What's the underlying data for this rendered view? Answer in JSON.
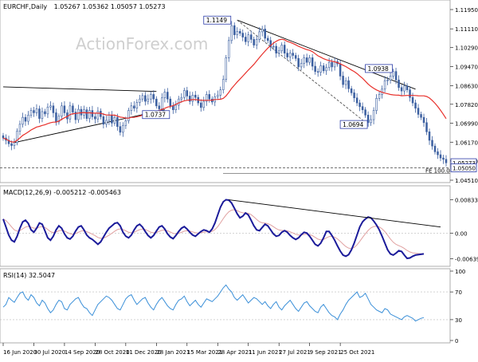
{
  "header": {
    "symbol": "EURCHF,Daily",
    "ohlc": "1.05267 1.05362 1.05057 1.05273"
  },
  "watermark": "ActionForex.com",
  "chart_data": [
    {
      "type": "candlestick",
      "panel": "price",
      "y_ticks": [
        "1.11950",
        "1.11110",
        "1.10290",
        "1.09470",
        "1.08630",
        "1.07820",
        "1.06990",
        "1.06170",
        "1.05350",
        "1.04510"
      ],
      "ylim": [
        1.0451,
        1.1195
      ],
      "price_labels": [
        {
          "label": "1.05273",
          "price": 1.05273,
          "color": "#2b3ba8"
        },
        {
          "label": "1.05050",
          "price": 1.0505,
          "color": "#2b3ba8"
        }
      ],
      "fe_label": "FE 100.0",
      "annotations": [
        {
          "label": "1.1149",
          "i": 82,
          "price": 1.1149,
          "pos": "left"
        },
        {
          "label": "1.0737",
          "i": 60,
          "price": 1.0737,
          "pos": "left"
        },
        {
          "label": "1.0938",
          "i": 140,
          "price": 1.0938,
          "pos": "left"
        },
        {
          "label": "1.0694",
          "i": 131,
          "price": 1.0694,
          "pos": "left"
        }
      ],
      "ma_color": "#e8302b",
      "candle_color": "#3b5fa0",
      "close_series": [
        1.0635,
        1.0625,
        1.061,
        1.0602,
        1.0615,
        1.0665,
        1.0695,
        1.0725,
        1.0708,
        1.0735,
        1.0755,
        1.0745,
        1.0762,
        1.072,
        1.075,
        1.074,
        1.077,
        1.0775,
        1.0745,
        1.0705,
        1.073,
        1.0775,
        1.0745,
        1.0718,
        1.0775,
        1.0748,
        1.0715,
        1.076,
        1.0735,
        1.0758,
        1.072,
        1.0755,
        1.0728,
        1.0718,
        1.0752,
        1.0728,
        1.0695,
        1.0712,
        1.0735,
        1.07,
        1.0725,
        1.0685,
        1.066,
        1.069,
        1.071,
        1.0755,
        1.0775,
        1.0765,
        1.079,
        1.0805,
        1.082,
        1.0795,
        1.0805,
        1.0825,
        1.0805,
        1.0775,
        1.0762,
        1.081,
        1.0835,
        1.0805,
        1.0775,
        1.0758,
        1.0778,
        1.0805,
        1.0812,
        1.0842,
        1.0818,
        1.0795,
        1.0822,
        1.0812,
        1.0788,
        1.0768,
        1.0795,
        1.0825,
        1.0805,
        1.0792,
        1.0815,
        1.0822,
        1.0845,
        1.089,
        1.0985,
        1.106,
        1.1125,
        1.1085,
        1.11,
        1.1092,
        1.1075,
        1.1055,
        1.1085,
        1.1065,
        1.104,
        1.1065,
        1.1098,
        1.111,
        1.107,
        1.106,
        1.1032,
        1.1035,
        1.1005,
        1.1015,
        1.104,
        1.1005,
        1.0988,
        1.1005,
        1.0995,
        1.0982,
        1.0945,
        1.096,
        1.0985,
        1.0965,
        1.0985,
        1.0948,
        1.0925,
        1.0922,
        1.095,
        1.0928,
        1.0942,
        1.0965,
        1.0945,
        1.0968,
        1.0958,
        1.0905,
        1.0868,
        1.0885,
        1.085,
        1.0832,
        1.081,
        1.0788,
        1.0772,
        1.0758,
        1.0735,
        1.0702,
        1.0715,
        1.0755,
        1.0808,
        1.0825,
        1.0848,
        1.0885,
        1.0888,
        1.0905,
        1.0925,
        1.0888,
        1.0855,
        1.084,
        1.0862,
        1.0845,
        1.0812,
        1.0788,
        1.0765,
        1.0738,
        1.0725,
        1.0702,
        1.0662,
        1.0625,
        1.06,
        1.0575,
        1.0562,
        1.0548,
        1.0542,
        1.0527
      ],
      "trendlines": [
        {
          "from": [
            0,
            1.0858
          ],
          "to": [
            55,
            1.0838
          ],
          "color": "#000"
        },
        {
          "from": [
            4,
            1.0615
          ],
          "to": [
            58,
            1.0758
          ],
          "color": "#000"
        },
        {
          "from": [
            84,
            1.1149
          ],
          "to": [
            148,
            1.0848
          ],
          "color": "#000"
        },
        {
          "from": [
            84,
            1.1149
          ],
          "to": [
            131,
            1.0694
          ],
          "color": "#555",
          "dashed": true
        }
      ],
      "hline": {
        "price": 1.0505,
        "color": "#444"
      }
    },
    {
      "type": "line",
      "panel": "macd",
      "title": "MACD(12,26,9) -0.005212 -0.005463",
      "y_ticks": [
        "0.008334",
        "0.00",
        "-0.006393"
      ],
      "ylim": [
        -0.0075,
        0.0092
      ],
      "zero": 0,
      "series_colors": {
        "macd": "#1b1b9a",
        "signal": "#e0a0a0"
      },
      "macd": [
        0.0035,
        0.0015,
        -0.0005,
        -0.0018,
        -0.0022,
        -0.0008,
        0.0012,
        0.0028,
        0.0032,
        0.0024,
        0.0008,
        0.0002,
        0.0012,
        0.0025,
        0.0022,
        0.0005,
        -0.0012,
        -0.0018,
        -0.0008,
        0.0008,
        0.0018,
        0.0012,
        -0.0002,
        -0.0012,
        -0.0015,
        -0.0008,
        0.0005,
        0.0015,
        0.0018,
        0.0008,
        -0.0005,
        -0.0012,
        -0.0016,
        -0.0022,
        -0.0028,
        -0.0022,
        -0.001,
        0.0002,
        0.0012,
        0.0018,
        0.0024,
        0.0026,
        0.0018,
        0.0002,
        -0.0008,
        -0.0012,
        -0.0005,
        0.0008,
        0.0018,
        0.0022,
        0.0015,
        0.0004,
        -0.0006,
        -0.0012,
        -0.0006,
        0.0005,
        0.0015,
        0.0018,
        0.001,
        -0.0002,
        -0.001,
        -0.0014,
        -0.0006,
        0.0004,
        0.0012,
        0.0016,
        0.001,
        0.0002,
        -0.0005,
        -0.0008,
        -0.0002,
        0.0004,
        0.0008,
        0.0006,
        0.0002,
        0.001,
        0.0025,
        0.0045,
        0.0065,
        0.0078,
        0.0083,
        0.0082,
        0.0075,
        0.0062,
        0.0048,
        0.0038,
        0.0042,
        0.005,
        0.0045,
        0.0032,
        0.0018,
        0.0008,
        0.0006,
        0.0014,
        0.0022,
        0.0018,
        0.0008,
        -0.0002,
        -0.0008,
        -0.0006,
        0.0002,
        0.0006,
        0.0002,
        -0.0006,
        -0.0012,
        -0.0016,
        -0.0012,
        -0.0004,
        0.0002,
        0.0,
        -0.0008,
        -0.0018,
        -0.0028,
        -0.0032,
        -0.0025,
        -0.0012,
        0.0004,
        0.0004,
        -0.0006,
        -0.0018,
        -0.0032,
        -0.0045,
        -0.0055,
        -0.0058,
        -0.0054,
        -0.0042,
        -0.0025,
        -0.0005,
        0.0015,
        0.0028,
        0.0035,
        0.004,
        0.0038,
        0.003,
        0.002,
        0.0008,
        -0.0008,
        -0.0025,
        -0.0042,
        -0.0052,
        -0.0055,
        -0.005,
        -0.0044,
        -0.0046,
        -0.0055,
        -0.0063,
        -0.0062,
        -0.0058,
        -0.0055,
        -0.0054,
        -0.0053,
        -0.0052
      ],
      "trendline": {
        "from": [
          81,
          0.0083
        ],
        "to": [
          157,
          0.0015
        ],
        "color": "#000"
      }
    },
    {
      "type": "line",
      "panel": "rsi",
      "title": "RSI(14) 32.5047",
      "y_ticks": [
        "100",
        "70",
        "30",
        "0"
      ],
      "ylim": [
        0,
        100
      ],
      "levels": [
        70,
        30
      ],
      "color": "#3a8fd8",
      "values": [
        48,
        52,
        62,
        58,
        55,
        62,
        68,
        70,
        62,
        58,
        66,
        62,
        54,
        50,
        58,
        54,
        46,
        40,
        44,
        52,
        58,
        56,
        46,
        44,
        52,
        56,
        60,
        62,
        54,
        48,
        46,
        40,
        36,
        44,
        52,
        56,
        60,
        64,
        62,
        58,
        52,
        46,
        44,
        52,
        60,
        64,
        66,
        58,
        52,
        56,
        60,
        62,
        54,
        48,
        44,
        52,
        58,
        62,
        56,
        50,
        46,
        44,
        52,
        58,
        60,
        64,
        56,
        50,
        54,
        58,
        52,
        48,
        54,
        60,
        58,
        56,
        60,
        64,
        70,
        76,
        80,
        74,
        70,
        62,
        58,
        62,
        66,
        60,
        54,
        58,
        62,
        60,
        56,
        52,
        56,
        50,
        46,
        52,
        56,
        48,
        44,
        50,
        54,
        58,
        52,
        46,
        42,
        48,
        54,
        56,
        50,
        46,
        42,
        40,
        48,
        52,
        46,
        40,
        36,
        34,
        30,
        38,
        44,
        52,
        58,
        62,
        66,
        70,
        62,
        64,
        68,
        60,
        52,
        48,
        44,
        42,
        40,
        46,
        44,
        38,
        36,
        34,
        32,
        30,
        34,
        36,
        34,
        32,
        28,
        30,
        32,
        33
      ]
    }
  ],
  "x_axis_labels": [
    {
      "label": "16 Jun 2020",
      "i": 0
    },
    {
      "label": "30 Jul 2020",
      "i": 11
    },
    {
      "label": "14 Sep 2020",
      "i": 22
    },
    {
      "label": "28 Oct 2020",
      "i": 33
    },
    {
      "label": "11 Dec 2020",
      "i": 44
    },
    {
      "label": "28 Jan 2021",
      "i": 55
    },
    {
      "label": "15 Mar 2021",
      "i": 66
    },
    {
      "label": "28 Apr 2021",
      "i": 77
    },
    {
      "label": "11 Jun 2021",
      "i": 88
    },
    {
      "label": "27 Jul 2021",
      "i": 99
    },
    {
      "label": "9 Sep 2021",
      "i": 110
    },
    {
      "label": "25 Oct 2021",
      "i": 121
    }
  ]
}
